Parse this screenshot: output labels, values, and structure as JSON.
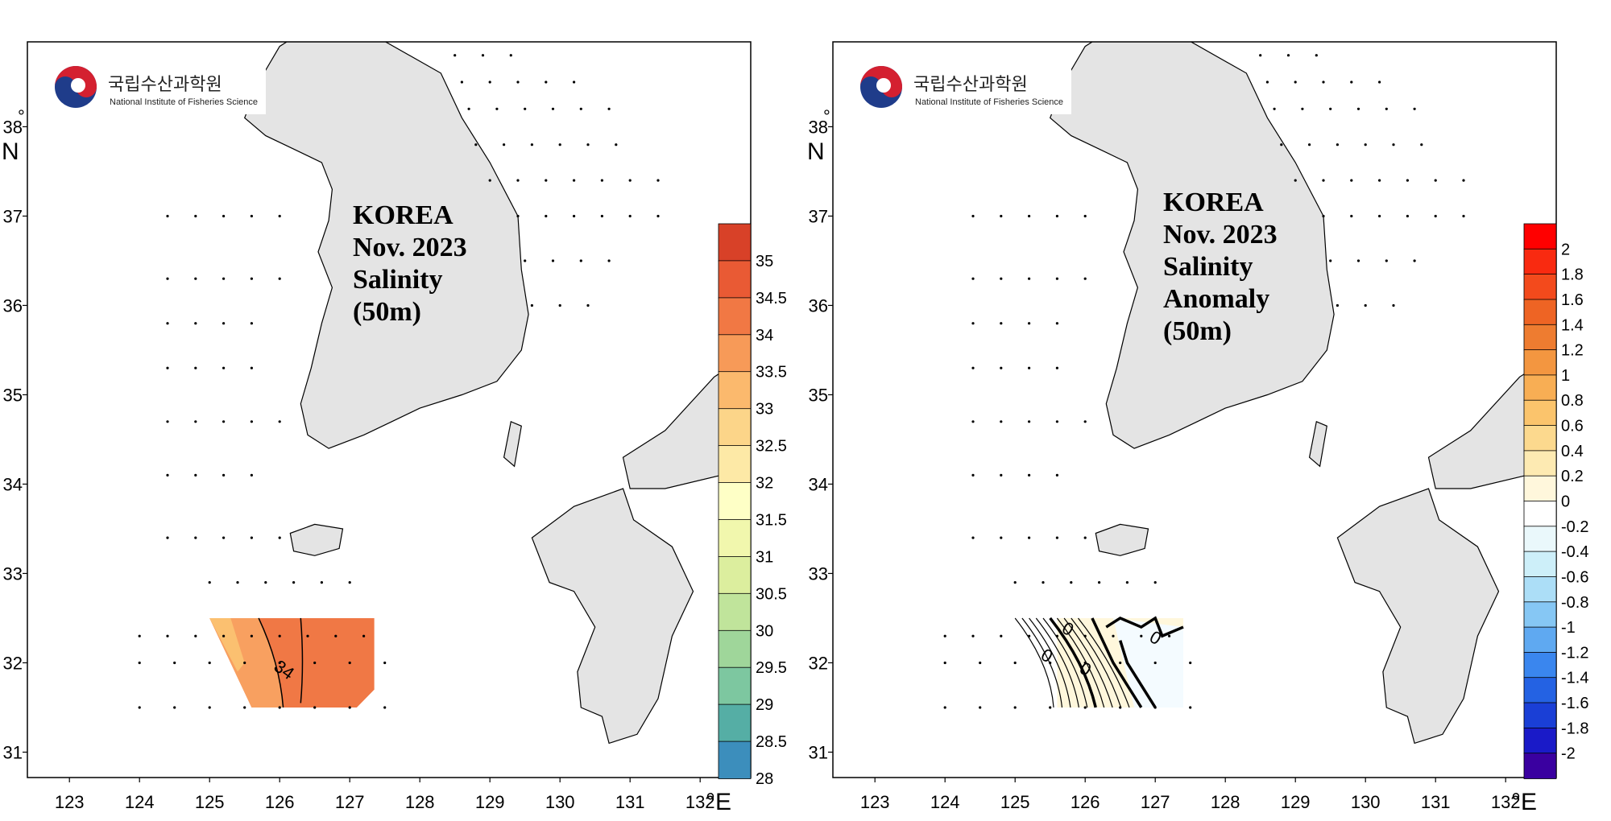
{
  "maps": [
    {
      "id": "salinity",
      "logo": {
        "korean": "국립수산과학원",
        "english": "National Institute of Fisheries Science"
      },
      "title_lines": [
        "KOREA",
        "Nov. 2023",
        "Salinity",
        "(50m)"
      ],
      "lon_ticks": [
        "123",
        "124",
        "125",
        "126",
        "127",
        "128",
        "129",
        "130",
        "131",
        "132"
      ],
      "lat_ticks": [
        "31",
        "32",
        "33",
        "34",
        "35",
        "36",
        "37",
        "38"
      ],
      "lon_unit": "°E",
      "lat_unit": "N",
      "lat_top_degree": "°",
      "colorbar": {
        "labels": [
          "35",
          "34.5",
          "34",
          "33.5",
          "33",
          "32.5",
          "32",
          "31.5",
          "31",
          "30.5",
          "30",
          "29.5",
          "29",
          "28.5",
          "28"
        ],
        "colors": [
          "#d84128",
          "#e95a34",
          "#f17844",
          "#f79a58",
          "#fbb96d",
          "#fcd589",
          "#fde9a6",
          "#feffc6",
          "#f1f7ad",
          "#dcee9e",
          "#c0e49b",
          "#9fd69a",
          "#7dc7a0",
          "#55aea5",
          "#3c8ebc"
        ]
      },
      "contour_labels": [
        "34"
      ]
    },
    {
      "id": "anomaly",
      "logo": {
        "korean": "국립수산과학원",
        "english": "National Institute of Fisheries Science"
      },
      "title_lines": [
        "KOREA",
        "Nov. 2023",
        "Salinity",
        "Anomaly",
        "(50m)"
      ],
      "lon_ticks": [
        "123",
        "124",
        "125",
        "126",
        "127",
        "128",
        "129",
        "130",
        "131",
        "132"
      ],
      "lat_ticks": [
        "31",
        "32",
        "33",
        "34",
        "35",
        "36",
        "37",
        "38"
      ],
      "lon_unit": "°E",
      "lat_unit": "N",
      "lat_top_degree": "°",
      "colorbar": {
        "labels": [
          "2",
          "1.8",
          "1.6",
          "1.4",
          "1.2",
          "1",
          "0.8",
          "0.6",
          "0.4",
          "0.2",
          "0",
          "-0.2",
          "-0.4",
          "-0.6",
          "-0.8",
          "-1",
          "-1.2",
          "-1.4",
          "-1.6",
          "-1.8",
          "-2"
        ],
        "colors": [
          "#ff0000",
          "#f92a10",
          "#f34a1c",
          "#ee6424",
          "#ee7c30",
          "#f39640",
          "#f8ae54",
          "#fbc46c",
          "#fcd98e",
          "#fdeab2",
          "#fff7dc",
          "#ffffff",
          "#eaf8fb",
          "#cdeff9",
          "#acdef7",
          "#86c7f4",
          "#5fa9f1",
          "#3a86ee",
          "#2462e3",
          "#1a3fd6",
          "#1a1ac8",
          "#3a00a0"
        ]
      },
      "contour_labels": [
        "0",
        "0",
        "0",
        "0"
      ]
    }
  ]
}
